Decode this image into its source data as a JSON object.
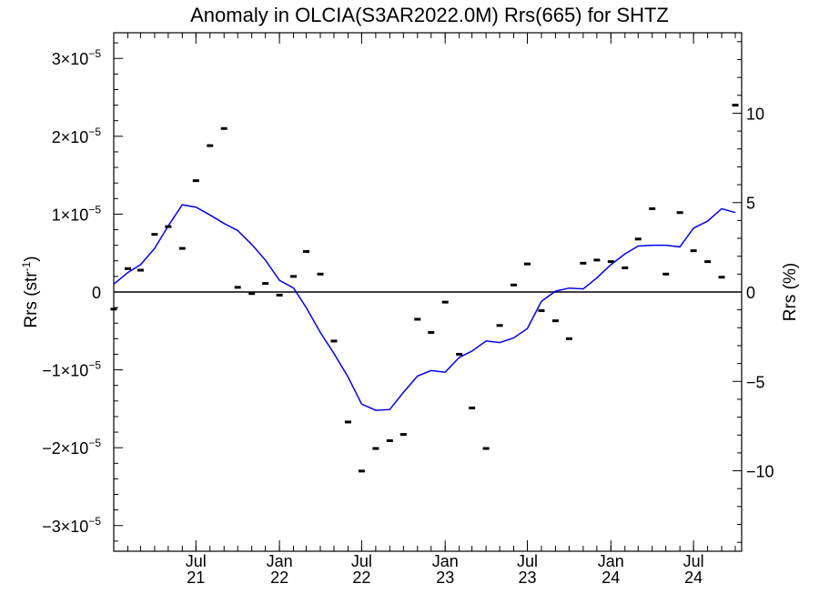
{
  "chart_data": {
    "type": "line",
    "title": "Anomaly in OLCIA(S3AR2022.0M) Rrs(665) for SHTZ",
    "ylabel_left": "Rrs (str",
    "ylabel_left_sup": "-1",
    "ylabel_left_close": ")",
    "ylabel_right": "Rrs (%)",
    "x_domain": [
      "2021-01-01",
      "2024-10-15"
    ],
    "y_left_lim": [
      -3.33e-05,
      3.33e-05
    ],
    "y_right_lim": [
      -14.5,
      14.5
    ],
    "zero_line": true,
    "left_ticks": [
      {
        "value": 3e-05,
        "mantissa": "3×10",
        "exp": "−5"
      },
      {
        "value": 2e-05,
        "mantissa": "2×10",
        "exp": "−5"
      },
      {
        "value": 1e-05,
        "mantissa": "1×10",
        "exp": "−5"
      },
      {
        "value": 0,
        "mantissa": "0",
        "exp": ""
      },
      {
        "value": -1e-05,
        "mantissa": "−1×10",
        "exp": "−5"
      },
      {
        "value": -2e-05,
        "mantissa": "−2×10",
        "exp": "−5"
      },
      {
        "value": -3e-05,
        "mantissa": "−3×10",
        "exp": "−5"
      }
    ],
    "right_ticks": [
      {
        "value": 10,
        "label": "10"
      },
      {
        "value": 5,
        "label": "5"
      },
      {
        "value": 0,
        "label": "0"
      },
      {
        "value": -5,
        "label": "−5"
      },
      {
        "value": -10,
        "label": "−10"
      }
    ],
    "x_ticks": [
      {
        "date": "2021-07-01",
        "line1": "Jul",
        "line2": "21"
      },
      {
        "date": "2022-01-01",
        "line1": "Jan",
        "line2": "22"
      },
      {
        "date": "2022-07-01",
        "line1": "Jul",
        "line2": "22"
      },
      {
        "date": "2023-01-01",
        "line1": "Jan",
        "line2": "23"
      },
      {
        "date": "2023-07-01",
        "line1": "Jul",
        "line2": "23"
      },
      {
        "date": "2024-01-01",
        "line1": "Jan",
        "line2": "24"
      },
      {
        "date": "2024-07-01",
        "line1": "Jul",
        "line2": "24"
      }
    ],
    "series": [
      {
        "kind": "points",
        "color": "#000000",
        "points": [
          [
            "2021-01-01",
            -2.2e-06
          ],
          [
            "2021-02-01",
            3e-06
          ],
          [
            "2021-03-01",
            2.8e-06
          ],
          [
            "2021-04-01",
            7.4e-06
          ],
          [
            "2021-05-01",
            8.4e-06
          ],
          [
            "2021-06-01",
            5.6e-06
          ],
          [
            "2021-07-01",
            1.43e-05
          ],
          [
            "2021-08-01",
            1.88e-05
          ],
          [
            "2021-09-01",
            2.1e-05
          ],
          [
            "2021-10-01",
            6e-07
          ],
          [
            "2021-11-01",
            -2e-07
          ],
          [
            "2021-12-01",
            1.1e-06
          ],
          [
            "2022-01-01",
            -4e-07
          ],
          [
            "2022-02-01",
            2e-06
          ],
          [
            "2022-03-01",
            5.2e-06
          ],
          [
            "2022-04-01",
            2.3e-06
          ],
          [
            "2022-05-01",
            -6.3e-06
          ],
          [
            "2022-06-01",
            -1.67e-05
          ],
          [
            "2022-07-01",
            -2.3e-05
          ],
          [
            "2022-08-01",
            -2.01e-05
          ],
          [
            "2022-09-01",
            -1.91e-05
          ],
          [
            "2022-10-01",
            -1.83e-05
          ],
          [
            "2022-11-01",
            -3.5e-06
          ],
          [
            "2022-12-01",
            -5.2e-06
          ],
          [
            "2023-01-01",
            -1.3e-06
          ],
          [
            "2023-02-01",
            -8e-06
          ],
          [
            "2023-03-01",
            -1.49e-05
          ],
          [
            "2023-04-01",
            -2.01e-05
          ],
          [
            "2023-05-01",
            -4.3e-06
          ],
          [
            "2023-06-01",
            9e-07
          ],
          [
            "2023-07-01",
            3.6e-06
          ],
          [
            "2023-08-01",
            -2.4e-06
          ],
          [
            "2023-09-01",
            -3.7e-06
          ],
          [
            "2023-10-01",
            -6e-06
          ],
          [
            "2023-11-01",
            3.7e-06
          ],
          [
            "2023-12-01",
            4.1e-06
          ],
          [
            "2024-01-01",
            3.9e-06
          ],
          [
            "2024-02-01",
            3.1e-06
          ],
          [
            "2024-03-01",
            6.8e-06
          ],
          [
            "2024-04-01",
            1.07e-05
          ],
          [
            "2024-05-01",
            2.3e-06
          ],
          [
            "2024-06-01",
            1.02e-05
          ],
          [
            "2024-07-01",
            5.3e-06
          ],
          [
            "2024-08-01",
            3.9e-06
          ],
          [
            "2024-09-01",
            1.9e-06
          ],
          [
            "2024-10-01",
            2.4e-05
          ]
        ]
      },
      {
        "kind": "line",
        "color": "#0000ee",
        "points": [
          [
            "2021-01-01",
            1e-06
          ],
          [
            "2021-02-01",
            2.5e-06
          ],
          [
            "2021-03-01",
            3.5e-06
          ],
          [
            "2021-04-01",
            5.6e-06
          ],
          [
            "2021-05-01",
            8.5e-06
          ],
          [
            "2021-06-01",
            1.12e-05
          ],
          [
            "2021-07-01",
            1.09e-05
          ],
          [
            "2021-08-01",
            9.9e-06
          ],
          [
            "2021-09-01",
            8.8e-06
          ],
          [
            "2021-10-01",
            7.9e-06
          ],
          [
            "2021-11-01",
            6.1e-06
          ],
          [
            "2021-12-01",
            4.1e-06
          ],
          [
            "2022-01-01",
            1.5e-06
          ],
          [
            "2022-02-01",
            5e-07
          ],
          [
            "2022-03-01",
            -2e-06
          ],
          [
            "2022-04-01",
            -5.2e-06
          ],
          [
            "2022-05-01",
            -7.9e-06
          ],
          [
            "2022-06-01",
            -1.09e-05
          ],
          [
            "2022-07-01",
            -1.44e-05
          ],
          [
            "2022-08-01",
            -1.52e-05
          ],
          [
            "2022-09-01",
            -1.51e-05
          ],
          [
            "2022-10-01",
            -1.29e-05
          ],
          [
            "2022-11-01",
            -1.08e-05
          ],
          [
            "2022-12-01",
            -1.01e-05
          ],
          [
            "2023-01-01",
            -1.03e-05
          ],
          [
            "2023-02-01",
            -8.4e-06
          ],
          [
            "2023-03-01",
            -7.6e-06
          ],
          [
            "2023-04-01",
            -6.3e-06
          ],
          [
            "2023-05-01",
            -6.5e-06
          ],
          [
            "2023-06-01",
            -5.9e-06
          ],
          [
            "2023-07-01",
            -4.7e-06
          ],
          [
            "2023-08-01",
            -1.2e-06
          ],
          [
            "2023-09-01",
            1e-07
          ],
          [
            "2023-10-01",
            5e-07
          ],
          [
            "2023-11-01",
            4e-07
          ],
          [
            "2023-12-01",
            1.8e-06
          ],
          [
            "2024-01-01",
            3.5e-06
          ],
          [
            "2024-02-01",
            4.9e-06
          ],
          [
            "2024-03-01",
            5.9e-06
          ],
          [
            "2024-04-01",
            6e-06
          ],
          [
            "2024-05-01",
            6e-06
          ],
          [
            "2024-06-01",
            5.8e-06
          ],
          [
            "2024-07-01",
            8.2e-06
          ],
          [
            "2024-08-01",
            9.1e-06
          ],
          [
            "2024-09-01",
            1.07e-05
          ],
          [
            "2024-10-01",
            1.02e-05
          ]
        ]
      }
    ]
  }
}
